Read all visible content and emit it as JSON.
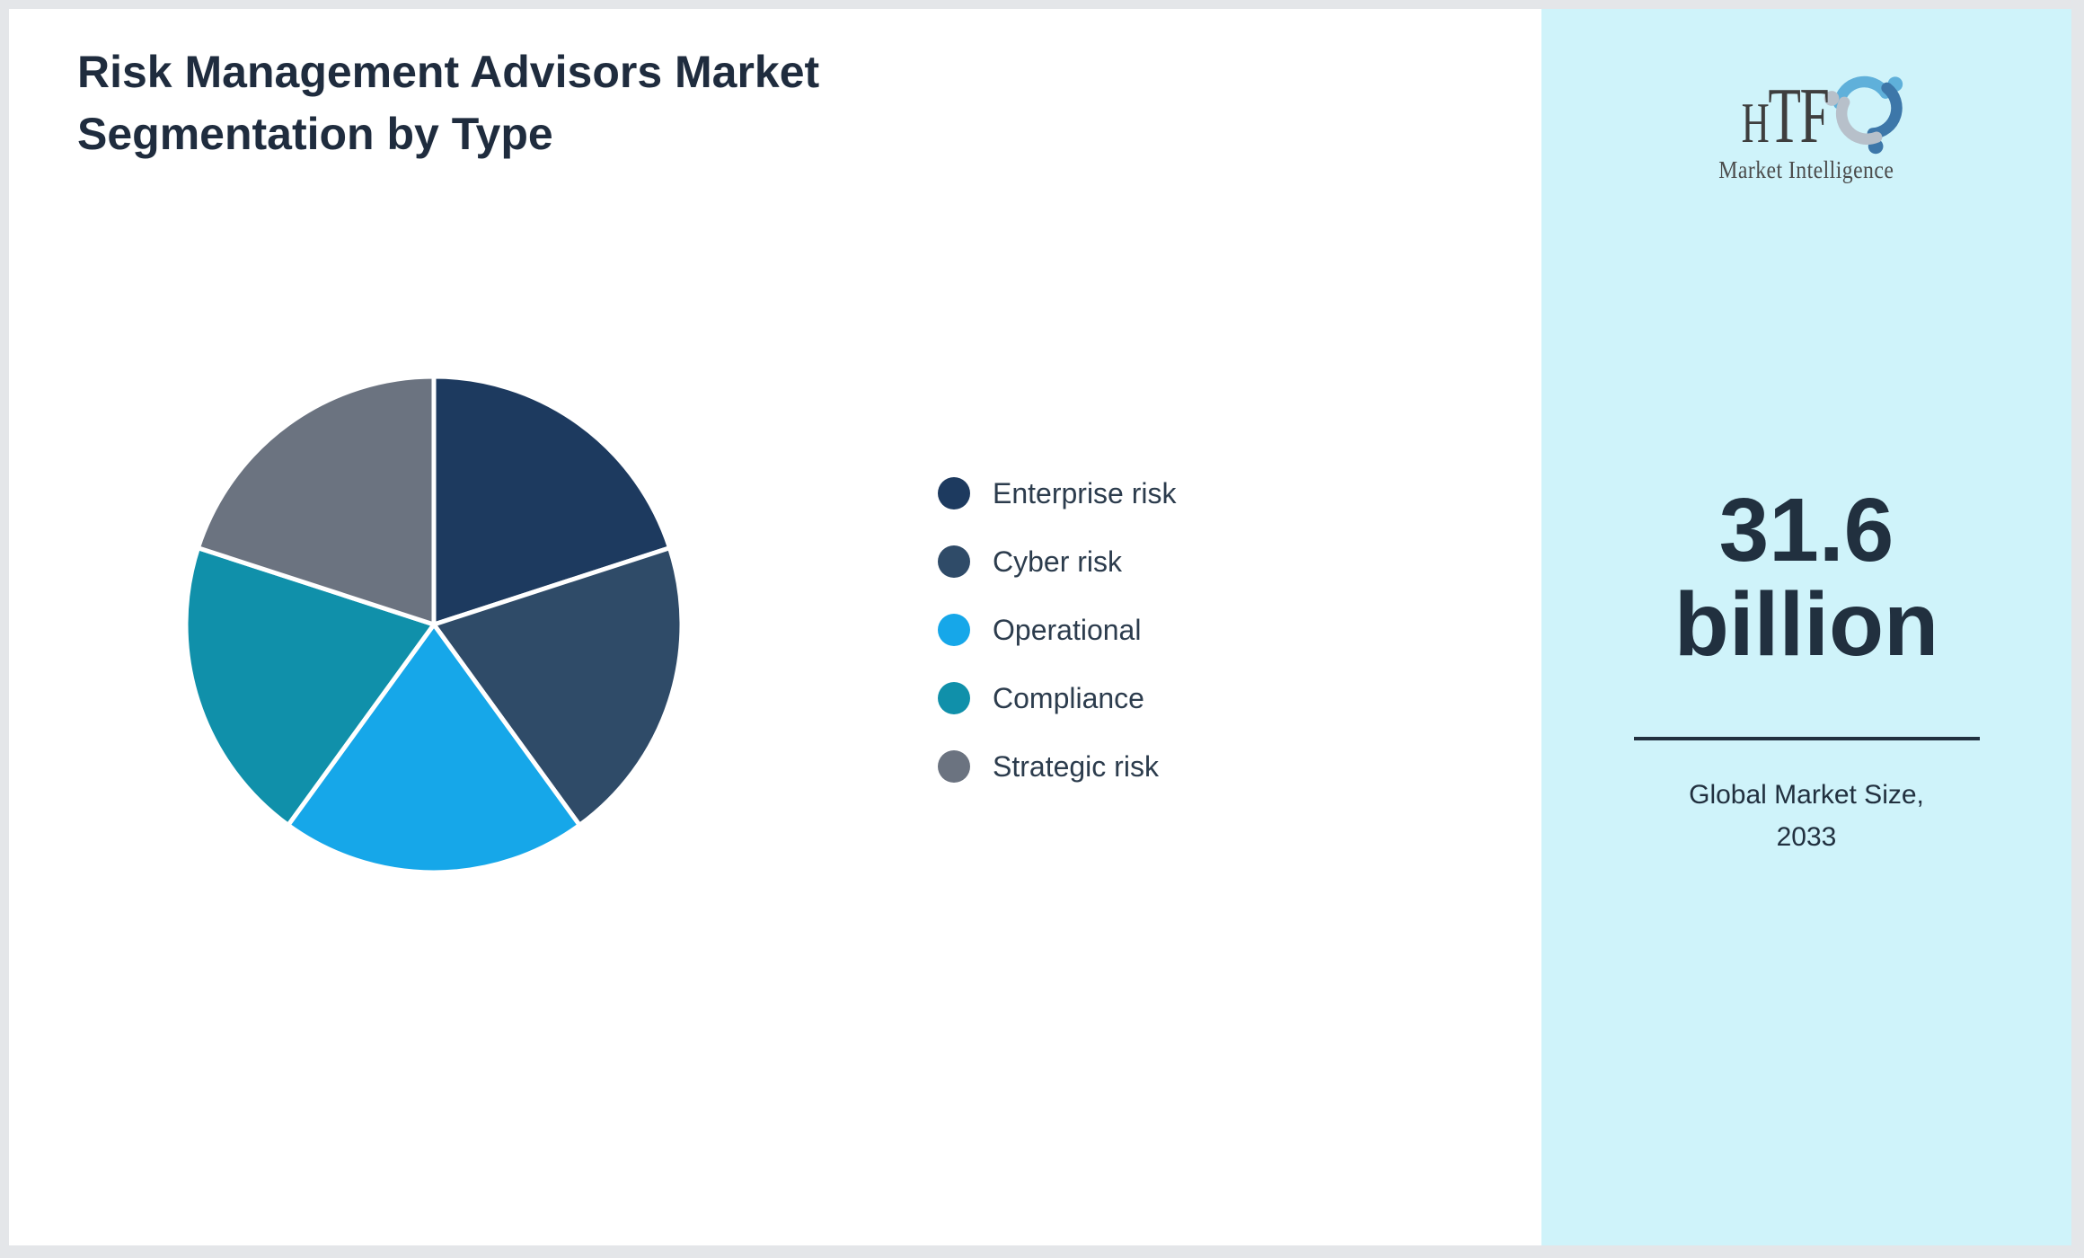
{
  "page": {
    "title": "Risk Management Advisors Market Segmentation by Type"
  },
  "branding": {
    "logo_text": "HTF",
    "logo_subtext": "Market Intelligence",
    "logo_colors": {
      "text": "#3e3e3e",
      "figure_top": "#5fb0da",
      "figure_right": "#3d77a9",
      "figure_left": "#b7c0ca"
    }
  },
  "sidebar": {
    "bg_color": "#cff3fa",
    "market_size_value": "31.6 billion",
    "market_size_label": "Global Market Size, 2033",
    "text_color": "#21303f"
  },
  "chart_data": {
    "type": "pie",
    "title": "Risk Management Advisors Market Segmentation by Type",
    "categories": [
      "Enterprise risk",
      "Cyber risk",
      "Operational",
      "Compliance",
      "Strategic risk"
    ],
    "values": [
      20,
      20,
      20,
      20,
      20
    ],
    "unit": "%",
    "colors": [
      "#1d3a5f",
      "#2f4b68",
      "#16a7e9",
      "#1090aa",
      "#6b7380"
    ],
    "start_angle_deg": 0,
    "direction": "clockwise",
    "slice_gap_color": "#ffffff",
    "legend_position": "right",
    "labels_on_slices": false
  }
}
